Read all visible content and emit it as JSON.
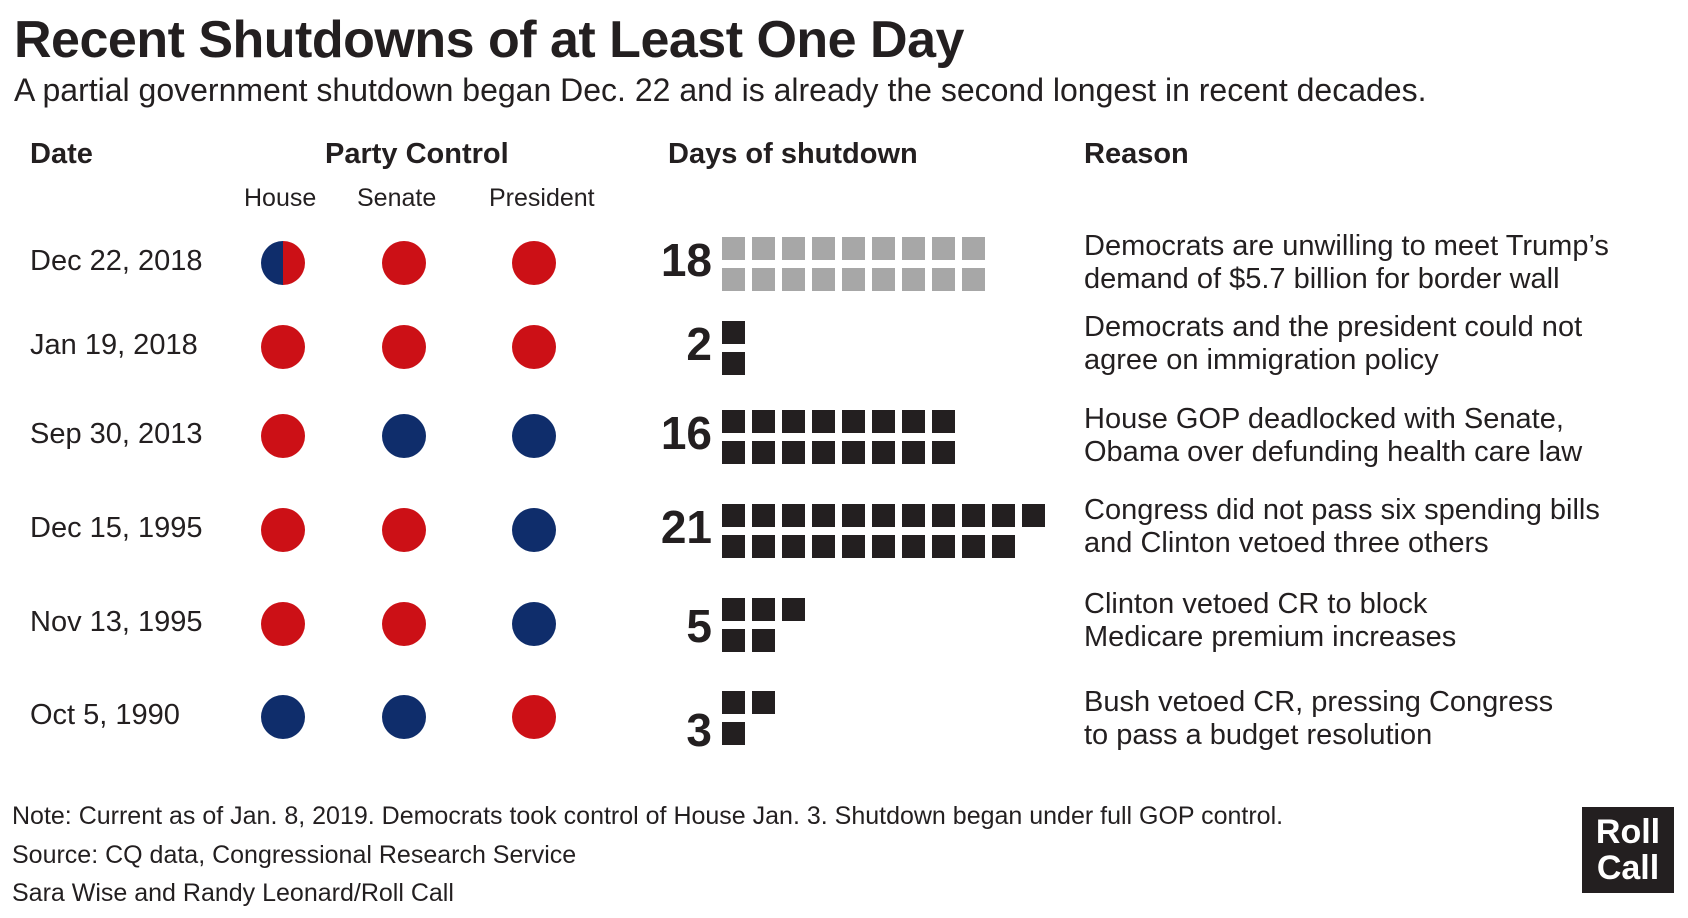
{
  "title": "Recent Shutdowns of at Least One Day",
  "subtitle": "A partial government shutdown began Dec. 22 and is already the second longest in recent decades.",
  "headers": {
    "date": "Date",
    "party_control": "Party Control",
    "house": "House",
    "senate": "Senate",
    "president": "President",
    "days": "Days of shutdown",
    "reason": "Reason"
  },
  "colors": {
    "republican": "#cc1016",
    "democrat": "#0f2d6b",
    "current_squares": "#a7a7a7",
    "past_squares": "#231f20"
  },
  "chart_data": {
    "type": "table",
    "rows": [
      {
        "date": "Dec 22, 2018",
        "house": "split",
        "senate": "R",
        "president": "R",
        "days": 18,
        "days_label": "18",
        "reason_line1": "Democrats are unwilling to meet Trump’s",
        "reason_line2": "demand of $5.7 billion for border wall",
        "ongoing": true
      },
      {
        "date": "Jan 19, 2018",
        "house": "R",
        "senate": "R",
        "president": "R",
        "days": 2,
        "days_label": "2",
        "reason_line1": "Democrats and the president could not",
        "reason_line2": "agree on immigration policy",
        "ongoing": false
      },
      {
        "date": "Sep 30, 2013",
        "house": "R",
        "senate": "D",
        "president": "D",
        "days": 16,
        "days_label": "16",
        "reason_line1": "House GOP deadlocked with Senate,",
        "reason_line2": "Obama over defunding health care law",
        "ongoing": false
      },
      {
        "date": "Dec 15, 1995",
        "house": "R",
        "senate": "R",
        "president": "D",
        "days": 21,
        "days_label": "21",
        "reason_line1": "Congress did not pass six spending bills",
        "reason_line2": "and Clinton vetoed three others",
        "ongoing": false
      },
      {
        "date": "Nov 13, 1995",
        "house": "R",
        "senate": "R",
        "president": "D",
        "days": 5,
        "days_label": "5",
        "reason_line1": "Clinton vetoed CR to block",
        "reason_line2": "Medicare premium increases",
        "ongoing": false
      },
      {
        "date": "Oct 5, 1990",
        "house": "D",
        "senate": "D",
        "president": "R",
        "days": 3,
        "days_label": "3",
        "reason_line1": "Bush vetoed CR, pressing Congress",
        "reason_line2": "to pass a budget resolution",
        "ongoing": false
      }
    ]
  },
  "footer": {
    "note": "Note: Current as of Jan. 8, 2019. Democrats took control of House Jan. 3. Shutdown began under full GOP control.",
    "source": "Source: CQ data, Congressional Research Service",
    "credit": "Sara Wise and Randy Leonard/Roll Call"
  },
  "logo": {
    "line1": "Roll",
    "line2": "Call"
  }
}
